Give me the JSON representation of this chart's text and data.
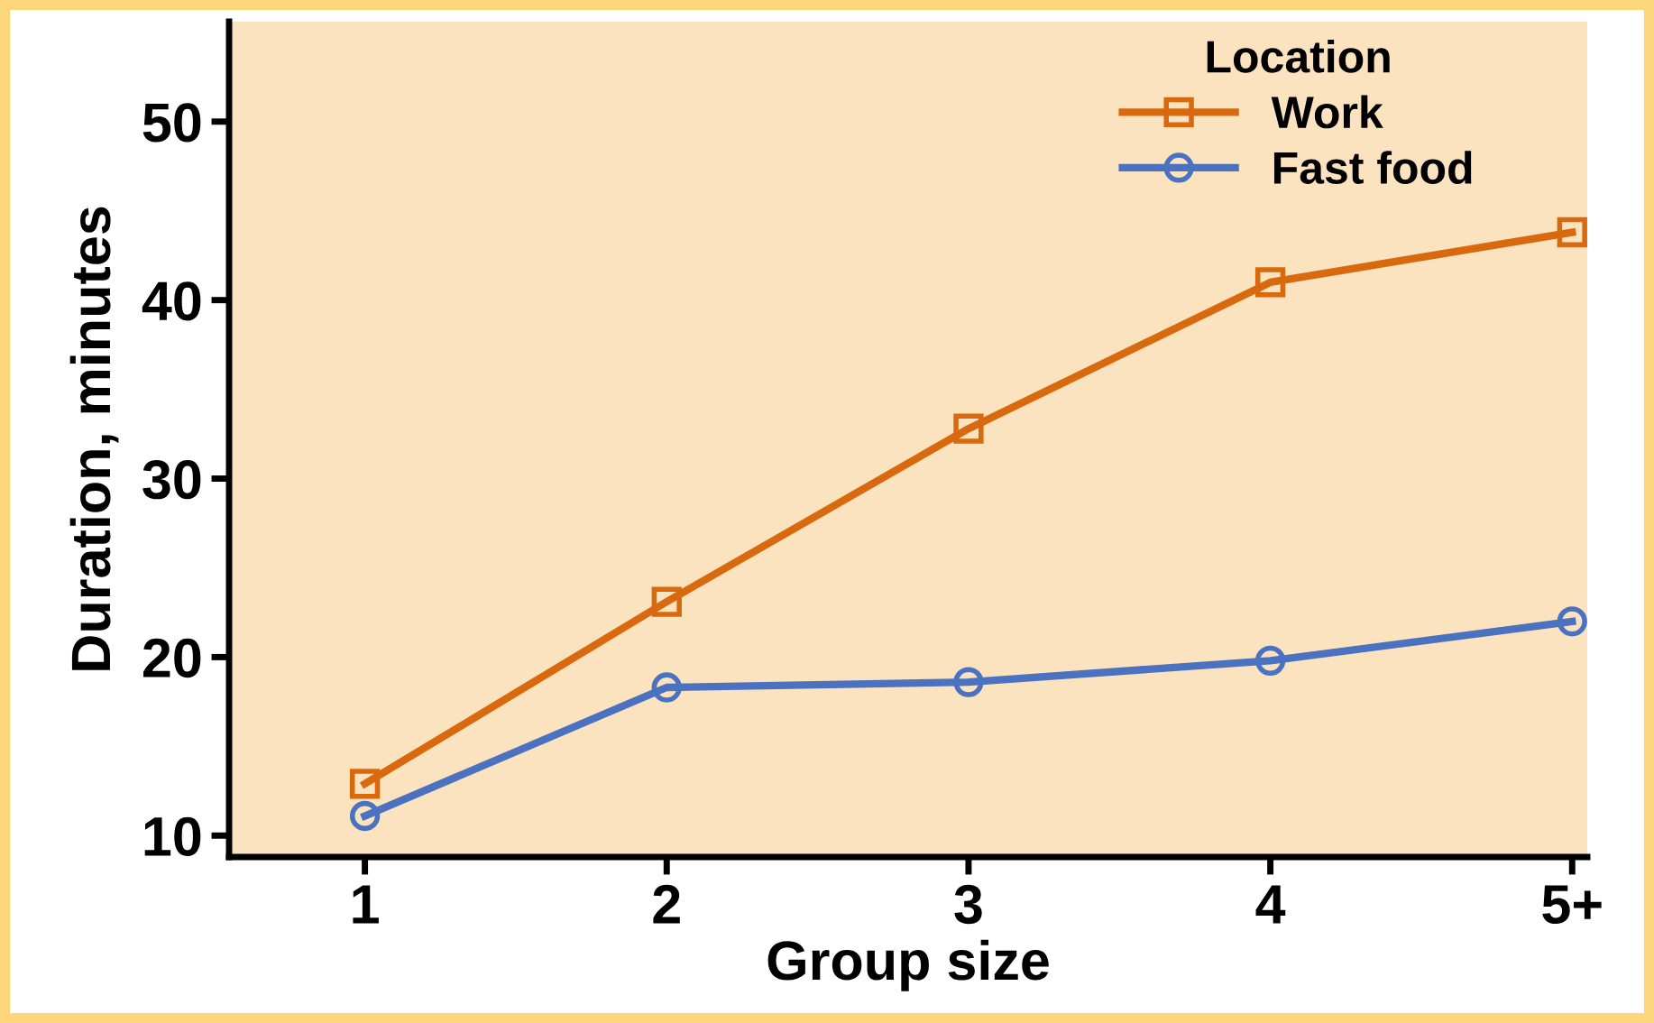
{
  "chart_data": {
    "type": "line",
    "xlabel": "Group size",
    "ylabel": "Duration, minutes",
    "legend_title": "Location",
    "categories": [
      "1",
      "2",
      "3",
      "4",
      "5+"
    ],
    "series": [
      {
        "name": "Work",
        "color": "#d9690e",
        "marker": "square",
        "values": [
          12.9,
          23.1,
          32.8,
          41.0,
          43.8
        ]
      },
      {
        "name": "Fast food",
        "color": "#4a72c0",
        "marker": "circle",
        "values": [
          11.1,
          18.3,
          18.6,
          19.8,
          22.0
        ]
      }
    ],
    "ylim": [
      8.8,
      55.6
    ],
    "yticks": [
      10,
      20,
      30,
      40,
      50
    ],
    "grid": false,
    "legend": "top right",
    "line_style": "solid"
  }
}
